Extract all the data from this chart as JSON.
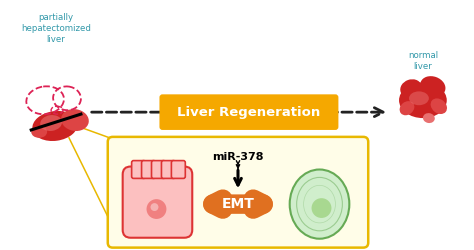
{
  "bg_color": "#ffffff",
  "zoom_box_face": "#fffde8",
  "zoom_box_edge": "#e8b800",
  "regen_box_color": "#f5a800",
  "regen_text": "Liver Regeneration",
  "mir_text": "miR-378",
  "emt_text": "EMT",
  "left_label": "partially\nhepatectomized\nliver",
  "right_label": "normal\nliver",
  "emt_arrow_color": "#e07020",
  "dashed_color": "#222222",
  "teal_color": "#3399aa",
  "red_cell_fill": "#f08080",
  "red_cell_edge": "#dd3333",
  "red_cell_light": "#fcc0c0",
  "green_cell_fill": "#a8d890",
  "green_cell_edge": "#66aa55",
  "green_cell_light": "#d0eecc",
  "liver_dark": "#cc2222",
  "liver_mid": "#dd4444",
  "liver_light": "#e87070",
  "dashed_liver_color": "#dd2255",
  "zoom_line_color": "#e8b800"
}
